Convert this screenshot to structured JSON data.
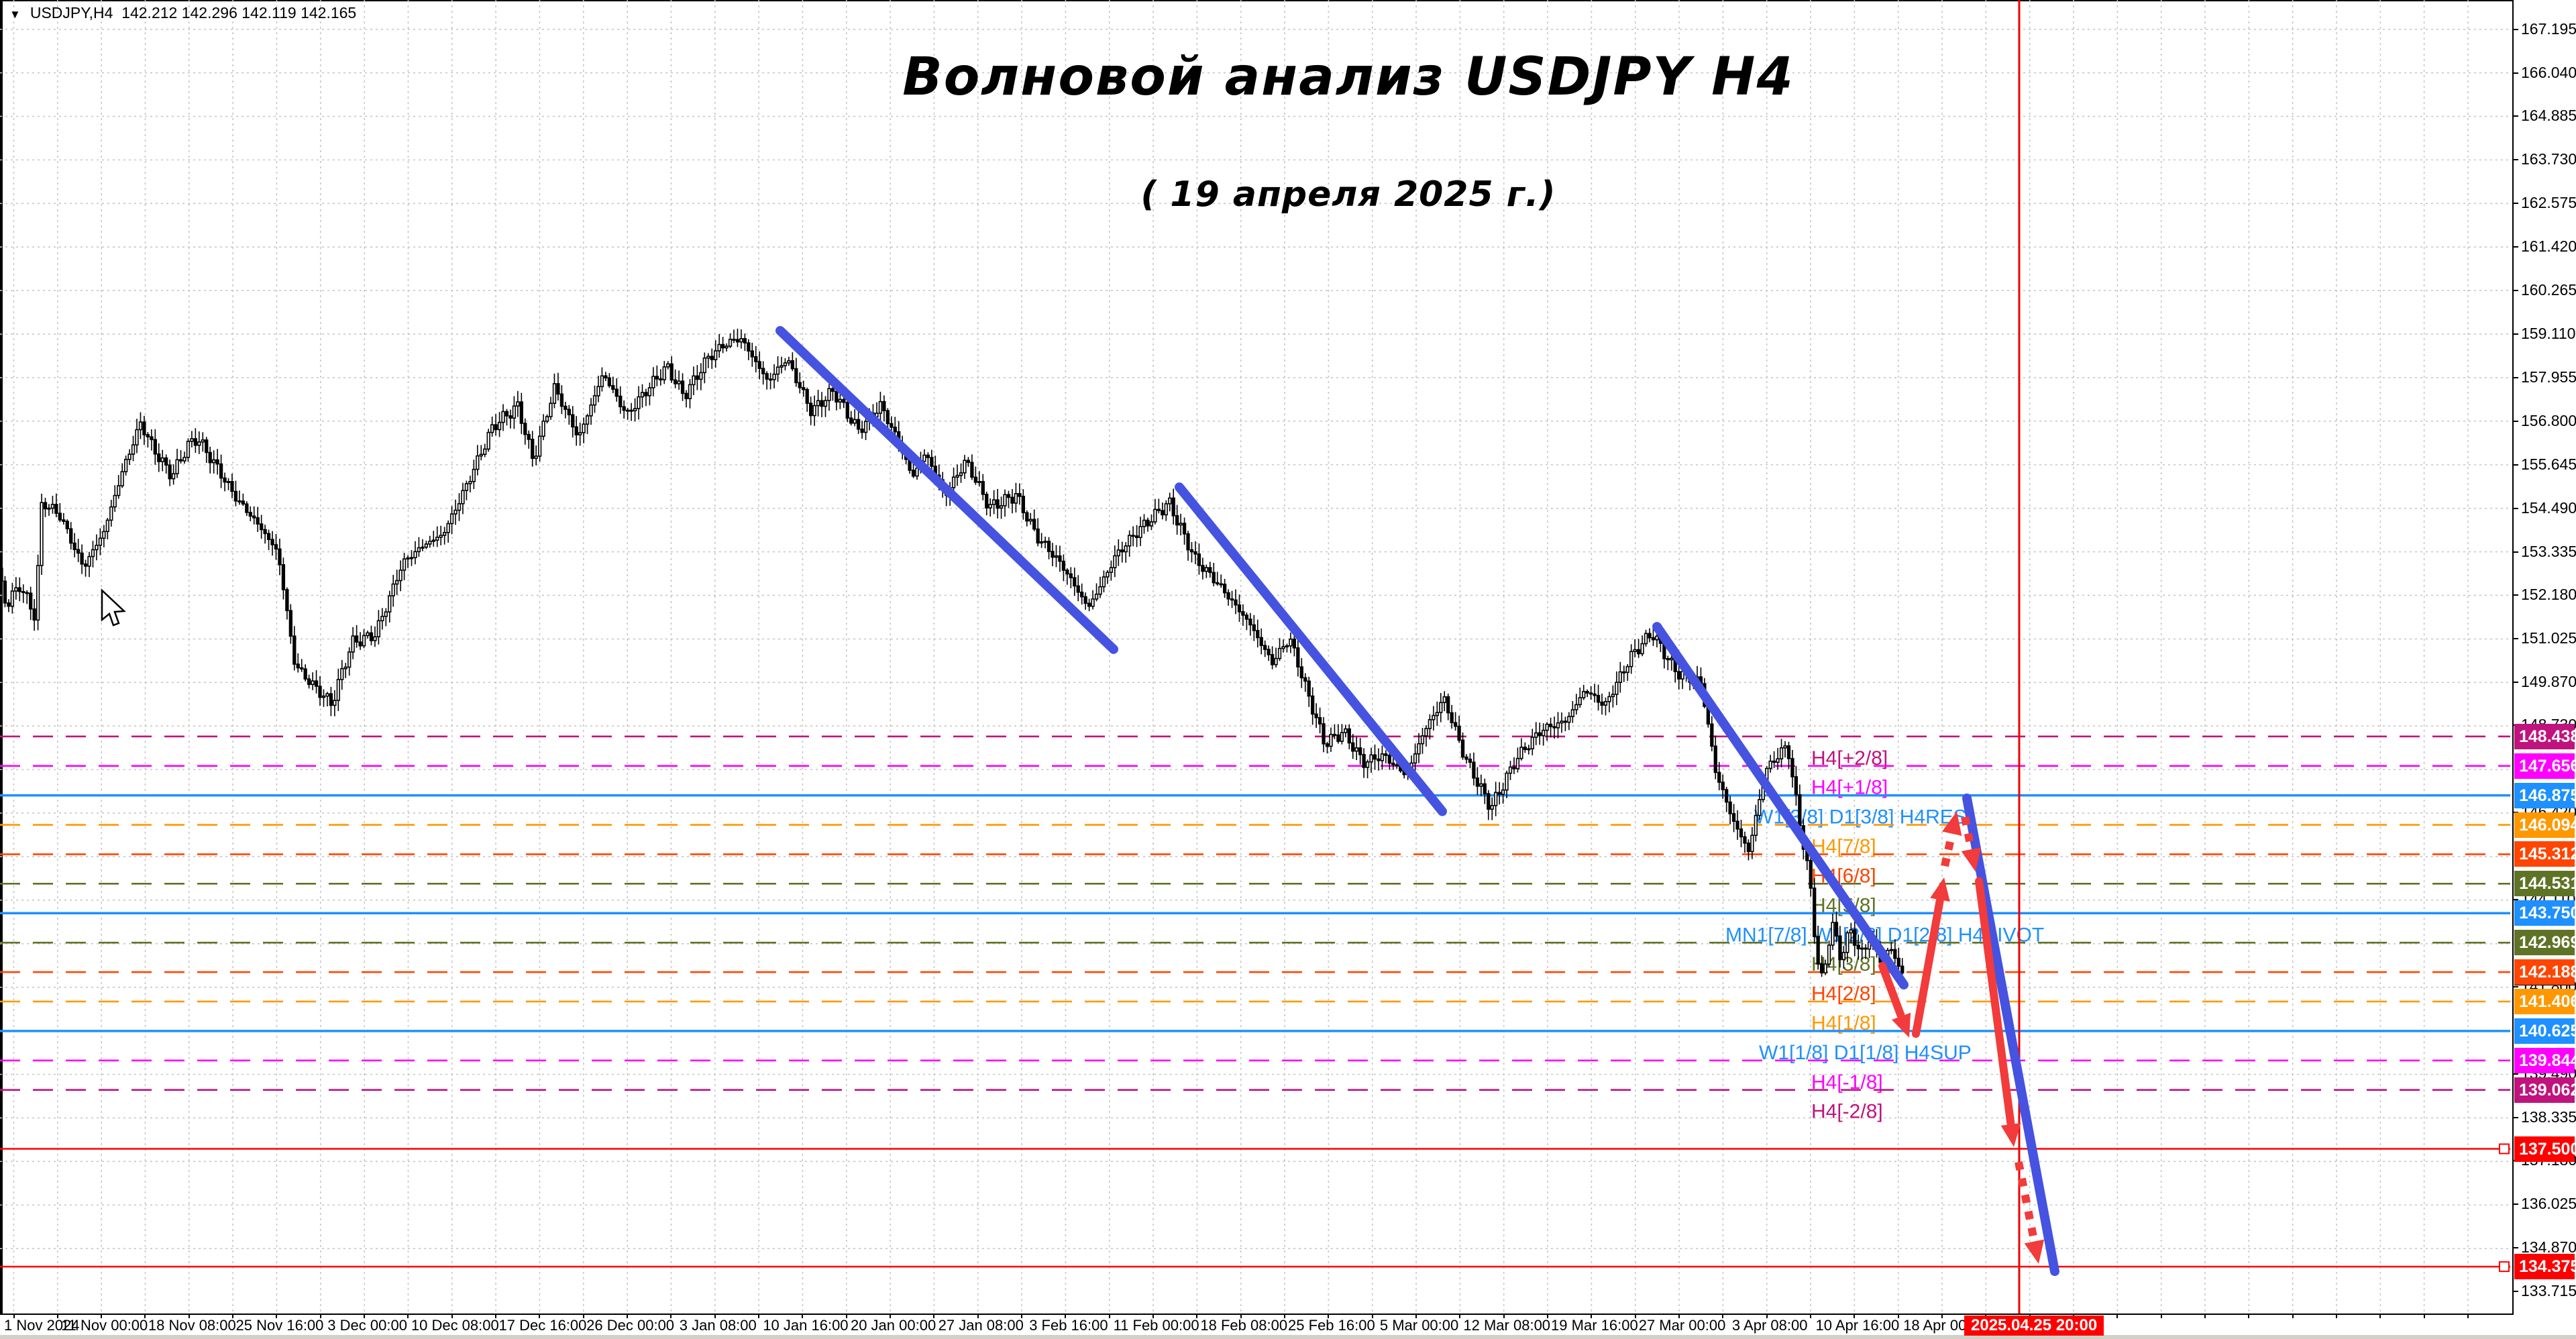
{
  "window": {
    "dropdown_icon": "triangle-down-icon",
    "symbol_info": "USDJPY,H4",
    "ohlc_text": "142.212 142.296 142.119 142.165"
  },
  "title": {
    "line1": "Волновой анализ USDJPY H4",
    "line2": "( 19 апреля 2025 г.)"
  },
  "x_axis": {
    "labels": [
      "1 Nov 2024",
      "11 Nov 00:00",
      "18 Nov 08:00",
      "25 Nov 16:00",
      "3 Dec 00:00",
      "10 Dec 08:00",
      "17 Dec 16:00",
      "26 Dec 00:00",
      "3 Jan 08:00",
      "10 Jan 16:00",
      "20 Jan 00:00",
      "27 Jan 08:00",
      "3 Feb 16:00",
      "11 Feb 00:00",
      "18 Feb 08:00",
      "25 Feb 16:00",
      "5 Mar 00:00",
      "12 Mar 08:00",
      "19 Mar 16:00",
      "27 Mar 00:00",
      "3 Apr 08:00",
      "10 Apr 16:00",
      "18 Apr 00:00"
    ],
    "highlight_label": "2025.04.25 20:00",
    "highlight_color": "#ff0000"
  },
  "y_axis": {
    "ticks": [
      "167.195",
      "166.040",
      "164.885",
      "163.730",
      "162.575",
      "161.420",
      "160.265",
      "159.110",
      "157.955",
      "156.800",
      "155.645",
      "154.490",
      "153.335",
      "152.180",
      "151.025",
      "149.870",
      "148.730",
      "146.420",
      "144.110",
      "141.800",
      "139.490",
      "138.335",
      "137.180",
      "136.025",
      "134.870",
      "133.715"
    ]
  },
  "current_price_marker": {
    "value": "142.165",
    "bg": "#000000"
  },
  "chart_data": {
    "type": "candlestick",
    "symbol": "USDJPY",
    "timeframe": "H4",
    "last_ohlc": {
      "open": 142.212,
      "high": 142.296,
      "low": 142.119,
      "close": 142.165
    },
    "ylim": [
      133.715,
      167.195
    ],
    "x_start_label": "1 Nov 2024",
    "x_end_label": "18 Apr 00:00",
    "price_path": [
      [
        0,
        152.9
      ],
      [
        15,
        151.9
      ],
      [
        35,
        152.4
      ],
      [
        58,
        151.6
      ],
      [
        68,
        154.7
      ],
      [
        95,
        154.35
      ],
      [
        130,
        152.9
      ],
      [
        160,
        153.8
      ],
      [
        190,
        155.6
      ],
      [
        215,
        156.8
      ],
      [
        240,
        155.9
      ],
      [
        262,
        155.3
      ],
      [
        285,
        156.1
      ],
      [
        300,
        156.35
      ],
      [
        330,
        155.6
      ],
      [
        360,
        154.7
      ],
      [
        395,
        153.9
      ],
      [
        420,
        153.3
      ],
      [
        445,
        150.4
      ],
      [
        468,
        149.9
      ],
      [
        500,
        149.25
      ],
      [
        530,
        150.9
      ],
      [
        565,
        151.2
      ],
      [
        605,
        153.0
      ],
      [
        640,
        153.5
      ],
      [
        665,
        153.8
      ],
      [
        700,
        155.1
      ],
      [
        740,
        156.6
      ],
      [
        778,
        157.2
      ],
      [
        800,
        155.8
      ],
      [
        832,
        157.7
      ],
      [
        868,
        156.3
      ],
      [
        905,
        158.1
      ],
      [
        940,
        157.0
      ],
      [
        965,
        157.5
      ],
      [
        1000,
        158.2
      ],
      [
        1025,
        157.5
      ],
      [
        1060,
        158.5
      ],
      [
        1085,
        158.8
      ],
      [
        1110,
        158.95
      ],
      [
        1150,
        157.9
      ],
      [
        1178,
        158.5
      ],
      [
        1215,
        157.0
      ],
      [
        1248,
        157.6
      ],
      [
        1285,
        156.6
      ],
      [
        1318,
        157.2
      ],
      [
        1350,
        156.0
      ],
      [
        1365,
        155.3
      ],
      [
        1385,
        156.0
      ],
      [
        1415,
        154.9
      ],
      [
        1445,
        155.7
      ],
      [
        1480,
        154.5
      ],
      [
        1520,
        154.9
      ],
      [
        1552,
        153.7
      ],
      [
        1590,
        152.9
      ],
      [
        1628,
        151.9
      ],
      [
        1668,
        153.2
      ],
      [
        1705,
        153.9
      ],
      [
        1748,
        154.7
      ],
      [
        1788,
        153.1
      ],
      [
        1828,
        152.3
      ],
      [
        1868,
        151.5
      ],
      [
        1902,
        150.4
      ],
      [
        1928,
        151.0
      ],
      [
        1952,
        149.7
      ],
      [
        1980,
        148.3
      ],
      [
        2008,
        148.6
      ],
      [
        2038,
        147.7
      ],
      [
        2068,
        147.9
      ],
      [
        2102,
        147.45
      ],
      [
        2128,
        148.6
      ],
      [
        2158,
        149.4
      ],
      [
        2188,
        147.9
      ],
      [
        2228,
        146.6
      ],
      [
        2265,
        147.8
      ],
      [
        2305,
        148.6
      ],
      [
        2340,
        148.9
      ],
      [
        2368,
        149.7
      ],
      [
        2398,
        149.2
      ],
      [
        2438,
        150.6
      ],
      [
        2468,
        151.25
      ],
      [
        2505,
        150.1
      ],
      [
        2542,
        149.8
      ],
      [
        2562,
        147.6
      ],
      [
        2588,
        146.3
      ],
      [
        2612,
        145.4
      ],
      [
        2638,
        147.5
      ],
      [
        2670,
        148.2
      ],
      [
        2688,
        146.2
      ],
      [
        2703,
        144.7
      ],
      [
        2714,
        142.6
      ],
      [
        2722,
        141.95
      ],
      [
        2736,
        143.5
      ],
      [
        2750,
        142.5
      ],
      [
        2764,
        143.3
      ],
      [
        2778,
        142.6
      ],
      [
        2794,
        143.1
      ],
      [
        2810,
        142.5
      ],
      [
        2824,
        142.9
      ],
      [
        2840,
        142.165
      ]
    ],
    "murrey_levels": [
      {
        "price": 148.438,
        "label": "H4[+2/8]",
        "color": "#c0137e",
        "style": "dashed",
        "label_x": 2700
      },
      {
        "price": 147.656,
        "label": "H4[+1/8]",
        "color": "#ff00ff",
        "style": "dashed",
        "label_x": 2700
      },
      {
        "price": 146.875,
        "label": "W1[3/8] D1[3/8] H4RES",
        "color": "#1e90ff",
        "style": "solid",
        "label_x": 2615
      },
      {
        "price": 146.094,
        "label": "H4[7/8]",
        "color": "#ff9800",
        "style": "dashed",
        "label_x": 2700
      },
      {
        "price": 145.312,
        "label": "H4[6/8]",
        "color": "#ff4500",
        "style": "dashed",
        "label_x": 2700
      },
      {
        "price": 144.531,
        "label": "H4[5/8]",
        "color": "#5f7326",
        "style": "dashed",
        "label_x": 2700
      },
      {
        "price": 143.75,
        "label": "MN1[7/8] W1[2/8] D1[2/8] H4PIVOT",
        "color": "#1e90ff",
        "style": "solid",
        "label_x": 2572
      },
      {
        "price": 142.969,
        "label": "H4[3/8]",
        "color": "#5f7326",
        "style": "dashed",
        "label_x": 2700
      },
      {
        "price": 142.188,
        "label": "H4[2/8]",
        "color": "#ff4500",
        "style": "dashed",
        "label_x": 2700
      },
      {
        "price": 141.406,
        "label": "H4[1/8]",
        "color": "#ff9800",
        "style": "dashed",
        "label_x": 2700
      },
      {
        "price": 140.625,
        "label": "W1[1/8] D1[1/8] H4SUP",
        "color": "#1e90ff",
        "style": "solid",
        "label_x": 2622
      },
      {
        "price": 139.844,
        "label": "H4[-1/8]",
        "color": "#ff00ff",
        "style": "dashed",
        "label_x": 2700
      },
      {
        "price": 139.062,
        "label": "H4[-2/8]",
        "color": "#c0137e",
        "style": "dashed",
        "label_x": 2700
      }
    ],
    "horizontal_red_lines": [
      {
        "price": 137.5,
        "color": "#ff0000"
      },
      {
        "price": 134.375,
        "color": "#ff0000"
      }
    ],
    "vertical_line": {
      "x": 3010,
      "time_label": "2025.04.25 20:00",
      "color": "#f00000"
    },
    "trendlines": [
      {
        "x1": 1163,
        "p1": 159.2,
        "x2": 1660,
        "p2": 150.75,
        "color": "#4553e0"
      },
      {
        "x1": 1758,
        "p1": 155.05,
        "x2": 2150,
        "p2": 146.45,
        "color": "#4553e0"
      },
      {
        "x1": 2470,
        "p1": 151.35,
        "x2": 2838,
        "p2": 141.85,
        "color": "#4553e0"
      },
      {
        "x1": 2932,
        "p1": 146.8,
        "x2": 3063,
        "p2": 134.25,
        "color": "#4553e0"
      }
    ],
    "forecast_arrows": [
      {
        "x1": 2806,
        "p1": 142.35,
        "x2": 2846,
        "p2": 140.45,
        "style": "solid",
        "color": "#f23b3b"
      },
      {
        "x1": 2856,
        "p1": 140.55,
        "x2": 2898,
        "p2": 144.7,
        "style": "solid",
        "color": "#f23b3b"
      },
      {
        "x1": 2899,
        "p1": 145.0,
        "x2": 2917,
        "p2": 146.45,
        "style": "dotted",
        "color": "#f23b3b"
      },
      {
        "x1": 2929,
        "p1": 146.3,
        "x2": 2945,
        "p2": 144.85,
        "style": "dotted",
        "color": "#f23b3b"
      },
      {
        "x1": 2950,
        "p1": 144.6,
        "x2": 3002,
        "p2": 137.55,
        "style": "solid",
        "color": "#f23b3b"
      },
      {
        "x1": 3009,
        "p1": 137.15,
        "x2": 3039,
        "p2": 134.45,
        "style": "dotted",
        "color": "#f23b3b"
      }
    ],
    "price_axis_boxes": [
      {
        "value": "148.438",
        "bg": "#c0137e"
      },
      {
        "value": "147.656",
        "bg": "#ff00ff"
      },
      {
        "value": "146.875",
        "bg": "#1e90ff"
      },
      {
        "value": "146.094",
        "bg": "#ff9800"
      },
      {
        "value": "145.312",
        "bg": "#ff4500"
      },
      {
        "value": "144.531",
        "bg": "#5f7326"
      },
      {
        "value": "143.750",
        "bg": "#1e90ff"
      },
      {
        "value": "142.969",
        "bg": "#5f7326"
      },
      {
        "value": "142.188",
        "bg": "#ff4500"
      },
      {
        "value": "141.406",
        "bg": "#ff9800"
      },
      {
        "value": "140.625",
        "bg": "#1e90ff"
      },
      {
        "value": "139.844",
        "bg": "#ff00ff"
      },
      {
        "value": "139.062",
        "bg": "#c0137e"
      },
      {
        "value": "137.500",
        "bg": "#ff0000"
      },
      {
        "value": "134.375",
        "bg": "#ff0000"
      }
    ]
  }
}
